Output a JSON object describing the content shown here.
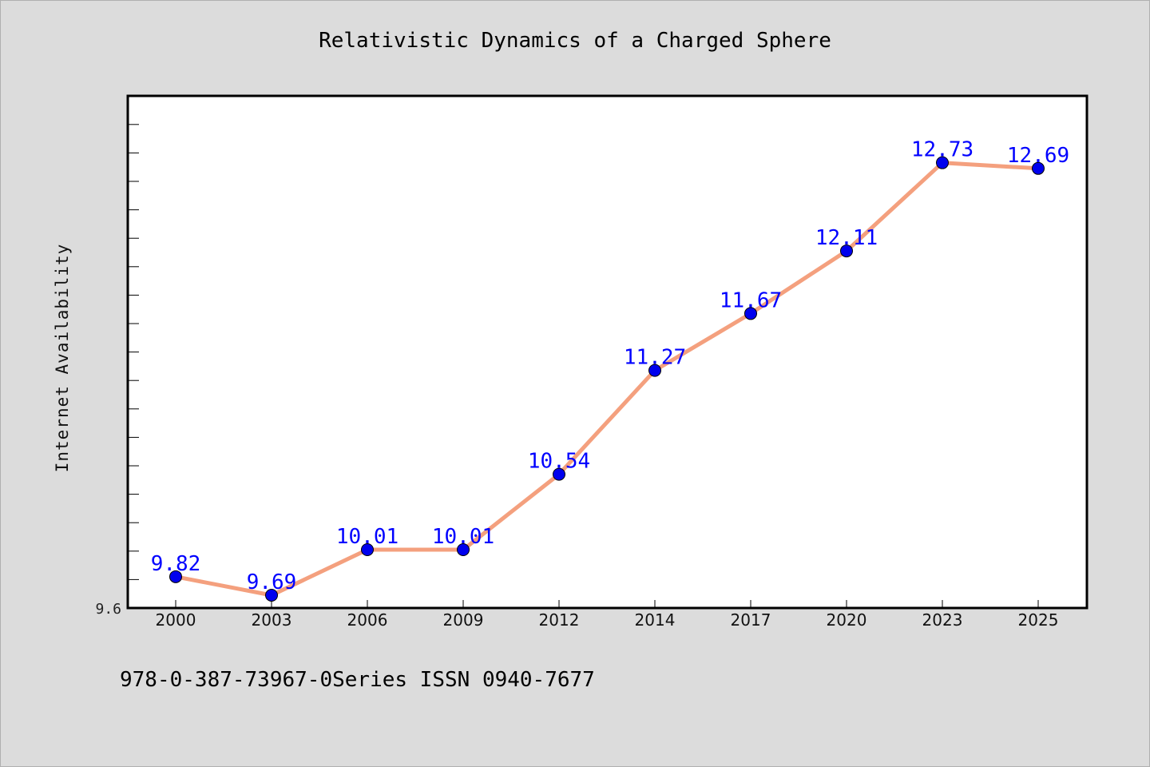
{
  "chart_data": {
    "type": "line",
    "title": "Relativistic Dynamics of a Charged Sphere",
    "xlabel": "",
    "ylabel": "Internet Availability",
    "categories": [
      "2000",
      "2003",
      "2006",
      "2009",
      "2012",
      "2014",
      "2017",
      "2020",
      "2023",
      "2025"
    ],
    "values": [
      9.82,
      9.69,
      10.01,
      10.01,
      10.54,
      11.27,
      11.67,
      12.11,
      12.73,
      12.69
    ],
    "data_labels": [
      "9.82",
      "9.69",
      "10.01",
      "10.01",
      "10.54",
      "11.27",
      "11.67",
      "12.11",
      "12.73",
      "12.69"
    ],
    "ylim": [
      9.6,
      13.2
    ],
    "y_tick_labels": [
      "9.6"
    ],
    "grid": false,
    "colors": {
      "line": "#f4a07e",
      "marker": "#0000ee",
      "data_label": "#0000ff",
      "background": "#dcdcdc",
      "plot_background": "#ffffff"
    }
  },
  "footer": {
    "text": "978-0-387-73967-0Series ISSN 0940-7677"
  }
}
